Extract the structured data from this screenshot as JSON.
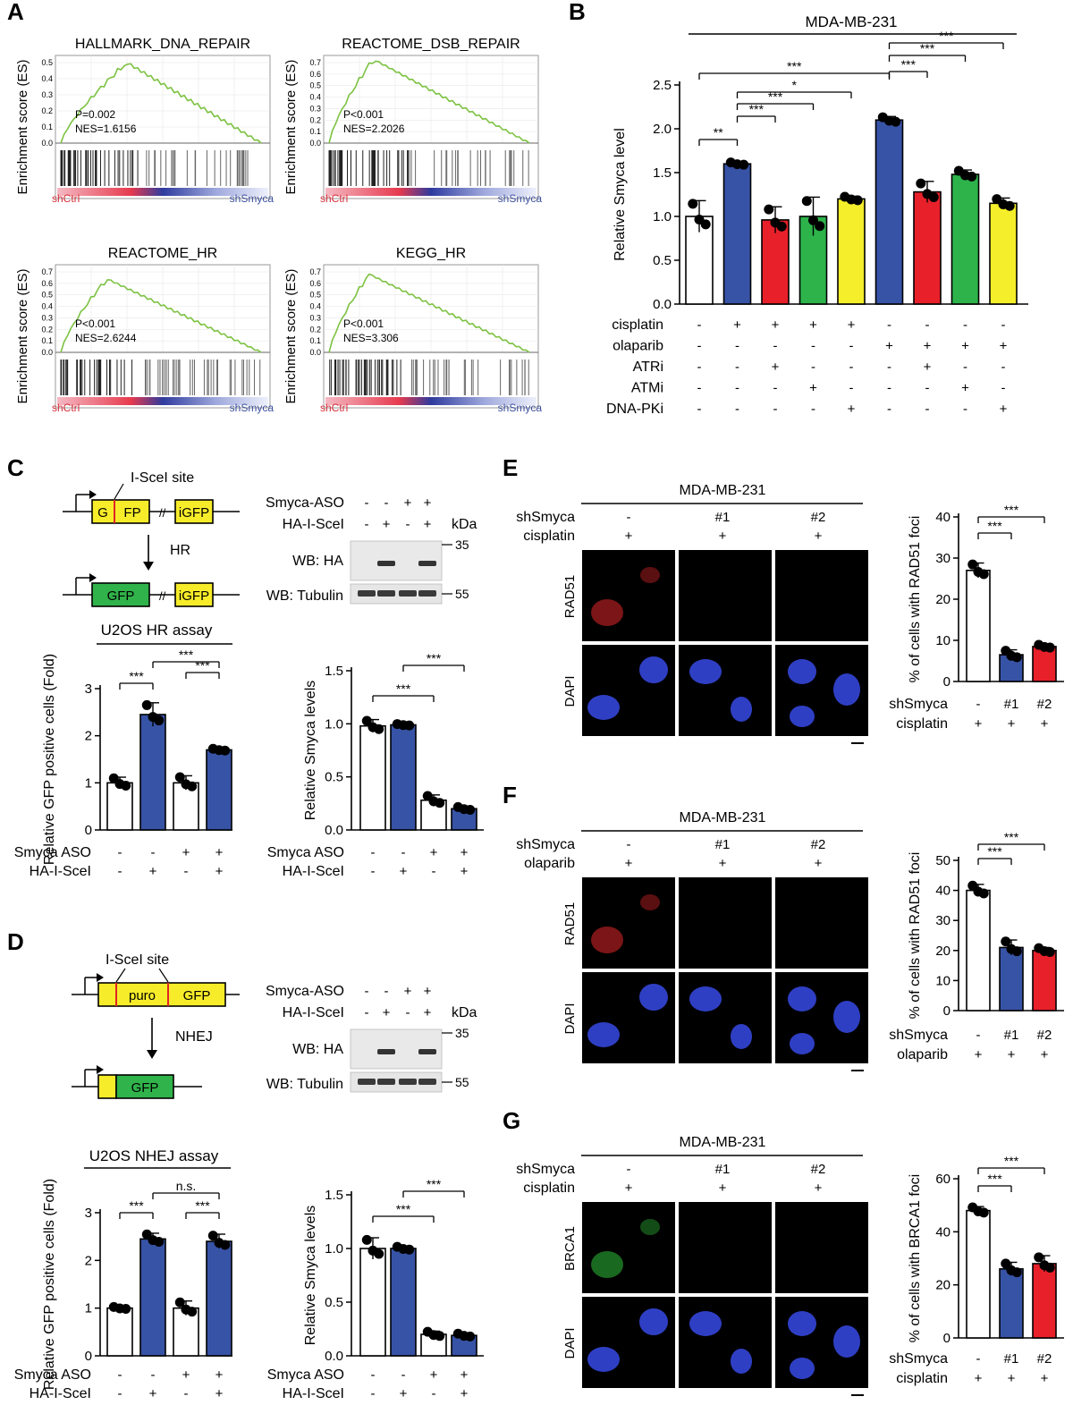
{
  "panel_labels": [
    "A",
    "B",
    "C",
    "D",
    "E",
    "F",
    "G"
  ],
  "gsea": [
    {
      "title": "HALLMARK_DNA_REPAIR",
      "stat_p": "P=0.002",
      "stat_nes": "NES=1.6156",
      "ylabel": "Enrichment score (ES)",
      "yticks": [
        "0.0",
        "0.1",
        "0.2",
        "0.3",
        "0.4",
        "0.5"
      ],
      "ymax": 0.5,
      "left": "shCtrl",
      "right": "shSmyca",
      "peak": 0.5,
      "peak_pos": 0.33
    },
    {
      "title": "REACTOME_DSB_REPAIR",
      "stat_p": "P<0.001",
      "stat_nes": "NES=2.2026",
      "ylabel": "Enrichment score (ES)",
      "yticks": [
        "0.0",
        "0.1",
        "0.2",
        "0.3",
        "0.4",
        "0.5",
        "0.6",
        "0.7"
      ],
      "ymax": 0.7,
      "left": "shCtrl",
      "right": "shSmyca",
      "peak": 0.73,
      "peak_pos": 0.22
    },
    {
      "title": "REACTOME_HR",
      "stat_p": "P<0.001",
      "stat_nes": "NES=2.6244",
      "ylabel": "Enrichment score (ES)",
      "yticks": [
        "0.0",
        "0.1",
        "0.2",
        "0.3",
        "0.4",
        "0.5",
        "0.6",
        "0.7"
      ],
      "ymax": 0.7,
      "left": "shCtrl",
      "right": "shSmyca",
      "peak": 0.64,
      "peak_pos": 0.23
    },
    {
      "title": "KEGG_HR",
      "stat_p": "P<0.001",
      "stat_nes": "NES=3.306",
      "ylabel": "Enrichment score (ES)",
      "yticks": [
        "0.0",
        "0.1",
        "0.2",
        "0.3",
        "0.4",
        "0.5",
        "0.6",
        "0.7"
      ],
      "ymax": 0.7,
      "left": "shCtrl",
      "right": "shSmyca",
      "peak": 0.68,
      "peak_pos": 0.2
    }
  ],
  "chart_data": [
    {
      "type": "bar",
      "panel": "B",
      "title": "MDA-MB-231",
      "ylabel": "Relative Smyca level",
      "ylim": [
        0,
        2.5
      ],
      "yticks": [
        "0.0",
        "0.5",
        "1.0",
        "1.5",
        "2.0",
        "2.5"
      ],
      "values": [
        1.0,
        1.6,
        0.96,
        1.0,
        1.2,
        2.1,
        1.28,
        1.48,
        1.15
      ],
      "errors": [
        0.18,
        0.02,
        0.15,
        0.22,
        0.03,
        0.04,
        0.12,
        0.05,
        0.06
      ],
      "colors": [
        "#ffffff",
        "#3753a5",
        "#e8202a",
        "#2db34a",
        "#f5ee2a",
        "#3753a5",
        "#e8202a",
        "#2db34a",
        "#f5ee2a"
      ],
      "row_labels": [
        "cisplatin",
        "olaparib",
        "ATRi",
        "ATMi",
        "DNA-PKi"
      ],
      "rows": [
        [
          "-",
          "+",
          "+",
          "+",
          "+",
          "-",
          "-",
          "-",
          "-"
        ],
        [
          "-",
          "-",
          "-",
          "-",
          "-",
          "+",
          "+",
          "+",
          "+"
        ],
        [
          "-",
          "-",
          "+",
          "-",
          "-",
          "-",
          "+",
          "-",
          "-"
        ],
        [
          "-",
          "-",
          "-",
          "+",
          "-",
          "-",
          "-",
          "+",
          "-"
        ],
        [
          "-",
          "-",
          "-",
          "-",
          "+",
          "-",
          "-",
          "-",
          "+"
        ]
      ],
      "sig": [
        [
          "**",
          0,
          1
        ],
        [
          "***",
          1,
          2
        ],
        [
          "***",
          1,
          3
        ],
        [
          "*",
          1,
          4
        ],
        [
          "***",
          0,
          5
        ],
        [
          "***",
          5,
          6
        ],
        [
          "***",
          5,
          7
        ],
        [
          "***",
          5,
          8
        ]
      ]
    },
    {
      "type": "bar",
      "panel": "C-left",
      "title": "U2OS HR assay",
      "ylabel": "Relative GFP positive cells (Fold)",
      "ylim": [
        0,
        3
      ],
      "yticks": [
        "0",
        "1",
        "2",
        "3"
      ],
      "values": [
        1.0,
        2.45,
        1.0,
        1.7
      ],
      "errors": [
        0.12,
        0.25,
        0.15,
        0.03
      ],
      "colors": [
        "#ffffff",
        "#3753a5",
        "#ffffff",
        "#3753a5"
      ],
      "row_labels": [
        "Smyca ASO",
        "HA-I-SceI"
      ],
      "rows": [
        [
          "-",
          "-",
          "+",
          "+"
        ],
        [
          "-",
          "+",
          "-",
          "+"
        ]
      ],
      "sig": [
        [
          "***",
          0,
          1
        ],
        [
          "***",
          2,
          3
        ],
        [
          "***",
          1,
          3
        ]
      ]
    },
    {
      "type": "bar",
      "panel": "C-right",
      "title": "",
      "ylabel": "Relative Smyca levels",
      "ylim": [
        0,
        1.5
      ],
      "yticks": [
        "0.0",
        "0.5",
        "1.0",
        "1.5"
      ],
      "values": [
        0.98,
        0.99,
        0.28,
        0.2
      ],
      "errors": [
        0.06,
        0.01,
        0.05,
        0.02
      ],
      "colors": [
        "#ffffff",
        "#3753a5",
        "#ffffff",
        "#3753a5"
      ],
      "row_labels": [
        "Smyca ASO",
        "HA-I-SceI"
      ],
      "rows": [
        [
          "-",
          "-",
          "+",
          "+"
        ],
        [
          "-",
          "+",
          "-",
          "+"
        ]
      ],
      "sig": [
        [
          "***",
          0,
          2
        ],
        [
          "***",
          1,
          3
        ]
      ]
    },
    {
      "type": "bar",
      "panel": "D-left",
      "title": "U2OS NHEJ assay",
      "ylabel": "Relative GFP positive cells (Fold)",
      "ylim": [
        0,
        3
      ],
      "yticks": [
        "0",
        "1",
        "2",
        "3"
      ],
      "values": [
        1.0,
        2.45,
        1.0,
        2.4
      ],
      "errors": [
        0.03,
        0.12,
        0.15,
        0.15
      ],
      "colors": [
        "#ffffff",
        "#3753a5",
        "#ffffff",
        "#3753a5"
      ],
      "row_labels": [
        "Smyca ASO",
        "HA-I-SceI"
      ],
      "rows": [
        [
          "-",
          "-",
          "+",
          "+"
        ],
        [
          "-",
          "+",
          "-",
          "+"
        ]
      ],
      "sig": [
        [
          "***",
          0,
          1
        ],
        [
          "***",
          2,
          3
        ],
        [
          "n.s.",
          1,
          3
        ]
      ]
    },
    {
      "type": "bar",
      "panel": "D-right",
      "title": "",
      "ylabel": "Relative Smyca levels",
      "ylim": [
        0,
        1.5
      ],
      "yticks": [
        "0.0",
        "0.5",
        "1.0",
        "1.5"
      ],
      "values": [
        1.0,
        1.0,
        0.2,
        0.19
      ],
      "errors": [
        0.1,
        0.02,
        0.03,
        0.02
      ],
      "colors": [
        "#ffffff",
        "#3753a5",
        "#ffffff",
        "#3753a5"
      ],
      "row_labels": [
        "Smyca ASO",
        "HA-I-SceI"
      ],
      "rows": [
        [
          "-",
          "-",
          "+",
          "+"
        ],
        [
          "-",
          "+",
          "-",
          "+"
        ]
      ],
      "sig": [
        [
          "***",
          0,
          2
        ],
        [
          "***",
          1,
          3
        ]
      ]
    },
    {
      "type": "bar",
      "panel": "E",
      "title": "",
      "ylabel": "% of cells with RAD51 foci",
      "ylim": [
        0,
        40
      ],
      "yticks": [
        "0",
        "10",
        "20",
        "30",
        "40"
      ],
      "values": [
        27,
        6.5,
        8.5
      ],
      "errors": [
        1.8,
        1.2,
        0.5
      ],
      "colors": [
        "#ffffff",
        "#3753a5",
        "#e8202a"
      ],
      "row_labels": [
        "shSmyca",
        "cisplatin"
      ],
      "rows": [
        [
          "-",
          "#1",
          "#2"
        ],
        [
          "+",
          "+",
          "+"
        ]
      ],
      "sig": [
        [
          "***",
          0,
          1
        ],
        [
          "***",
          0,
          2
        ]
      ]
    },
    {
      "type": "bar",
      "panel": "F",
      "title": "",
      "ylabel": "% of cells with RAD51 foci",
      "ylim": [
        0,
        50
      ],
      "yticks": [
        "0",
        "10",
        "20",
        "30",
        "40",
        "50"
      ],
      "values": [
        40,
        21,
        20
      ],
      "errors": [
        2,
        2.5,
        1
      ],
      "colors": [
        "#ffffff",
        "#3753a5",
        "#e8202a"
      ],
      "row_labels": [
        "shSmyca",
        "olaparib"
      ],
      "rows": [
        [
          "-",
          "#1",
          "#2"
        ],
        [
          "+",
          "+",
          "+"
        ]
      ],
      "sig": [
        [
          "***",
          0,
          1
        ],
        [
          "***",
          0,
          2
        ]
      ]
    },
    {
      "type": "bar",
      "panel": "G",
      "title": "",
      "ylabel": "% of cells with BRCA1 foci",
      "ylim": [
        0,
        60
      ],
      "yticks": [
        "0",
        "20",
        "40",
        "60"
      ],
      "values": [
        48,
        26,
        28
      ],
      "errors": [
        1.5,
        2.5,
        3
      ],
      "colors": [
        "#ffffff",
        "#3753a5",
        "#e8202a"
      ],
      "row_labels": [
        "shSmyca",
        "cisplatin"
      ],
      "rows": [
        [
          "-",
          "#1",
          "#2"
        ],
        [
          "+",
          "+",
          "+"
        ]
      ],
      "sig": [
        [
          "***",
          0,
          1
        ],
        [
          "***",
          0,
          2
        ]
      ]
    }
  ],
  "c_diagram": {
    "site": "I-SceI site",
    "g": "G",
    "fp": "FP",
    "igfp": "iGFP",
    "arrow": "HR",
    "gfp": "GFP"
  },
  "d_diagram": {
    "site": "I-SceI site",
    "puro": "puro",
    "gfp": "GFP",
    "arrow": "NHEJ"
  },
  "c_blot": {
    "row1": "Smyca-ASO",
    "row2": "HA-I-SceI",
    "signs1": [
      "-",
      "-",
      "+",
      "+"
    ],
    "signs2": [
      "-",
      "+",
      "-",
      "+"
    ],
    "kda": "kDa",
    "wb1": "WB: HA",
    "wb2": "WB: Tubulin",
    "m1": "35",
    "m2": "55"
  },
  "d_blot": {
    "row1": "Smyca-ASO",
    "row2": "HA-I-SceI",
    "signs1": [
      "-",
      "-",
      "+",
      "+"
    ],
    "signs2": [
      "-",
      "+",
      "-",
      "+"
    ],
    "kda": "kDa",
    "wb1": "WB: HA",
    "wb2": "WB: Tubulin",
    "m1": "35",
    "m2": "55"
  },
  "micro": [
    {
      "title": "MDA-MB-231",
      "row1": "shSmyca",
      "row2": "cisplatin",
      "cols1": [
        "-",
        "#1",
        "#2"
      ],
      "cols2": [
        "+",
        "+",
        "+"
      ],
      "stain": "RAD51",
      "stain_color": "#e0262a",
      "dapi": "DAPI"
    },
    {
      "title": "MDA-MB-231",
      "row1": "shSmyca",
      "row2": "olaparib",
      "cols1": [
        "-",
        "#1",
        "#2"
      ],
      "cols2": [
        "+",
        "+",
        "+"
      ],
      "stain": "RAD51",
      "stain_color": "#e0262a",
      "dapi": "DAPI"
    },
    {
      "title": "MDA-MB-231",
      "row1": "shSmyca",
      "row2": "cisplatin",
      "cols1": [
        "-",
        "#1",
        "#2"
      ],
      "cols2": [
        "+",
        "+",
        "+"
      ],
      "stain": "BRCA1",
      "stain_color": "#2fbf3a",
      "dapi": "DAPI"
    }
  ],
  "colors": {
    "blue": "#3753a5",
    "red": "#e8202a",
    "green": "#2db34a",
    "yellow": "#f5ee2a",
    "gsea_line": "#7cc242"
  }
}
